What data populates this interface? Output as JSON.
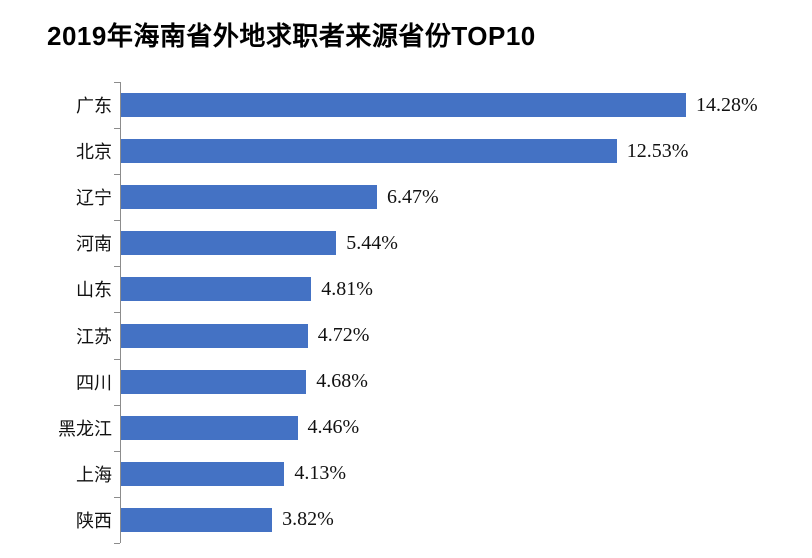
{
  "chart_data": {
    "type": "bar",
    "orientation": "horizontal",
    "title": "2019年海南省外地求职者来源省份TOP10",
    "categories": [
      "广东",
      "北京",
      "辽宁",
      "河南",
      "山东",
      "江苏",
      "四川",
      "黑龙江",
      "上海",
      "陕西"
    ],
    "values": [
      14.28,
      12.53,
      6.47,
      5.44,
      4.81,
      4.72,
      4.68,
      4.46,
      4.13,
      3.82
    ],
    "value_labels": [
      "14.28%",
      "12.53%",
      "6.47%",
      "5.44%",
      "4.81%",
      "4.72%",
      "4.68%",
      "4.46%",
      "4.13%",
      "3.82%"
    ],
    "xlabel": "",
    "ylabel": "",
    "xlim": [
      0,
      15
    ],
    "grid": false,
    "legend_position": "none",
    "bar_color": "#4472c4",
    "axis_color": "#8c8c8c",
    "title_color": "#000000",
    "label_color": "#111111"
  }
}
